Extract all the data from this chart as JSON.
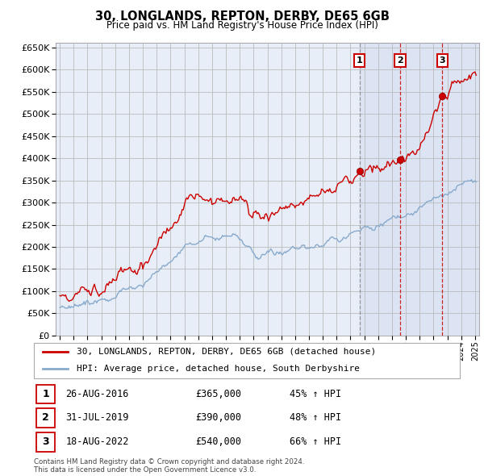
{
  "title": "30, LONGLANDS, REPTON, DERBY, DE65 6GB",
  "subtitle": "Price paid vs. HM Land Registry's House Price Index (HPI)",
  "red_label": "30, LONGLANDS, REPTON, DERBY, DE65 6GB (detached house)",
  "blue_label": "HPI: Average price, detached house, South Derbyshire",
  "footer1": "Contains HM Land Registry data © Crown copyright and database right 2024.",
  "footer2": "This data is licensed under the Open Government Licence v3.0.",
  "ylim": [
    0,
    660000
  ],
  "yticks": [
    0,
    50000,
    100000,
    150000,
    200000,
    250000,
    300000,
    350000,
    400000,
    450000,
    500000,
    550000,
    600000,
    650000
  ],
  "sale_events": [
    {
      "num": 1,
      "date": "26-AUG-2016",
      "price": "£365,000",
      "hpi": "45% ↑ HPI",
      "x_year": 2016.65,
      "line_color": "#888888"
    },
    {
      "num": 2,
      "date": "31-JUL-2019",
      "price": "£390,000",
      "hpi": "48% ↑ HPI",
      "x_year": 2019.58,
      "line_color": "#cc0000"
    },
    {
      "num": 3,
      "date": "18-AUG-2022",
      "price": "£540,000",
      "hpi": "66% ↑ HPI",
      "x_year": 2022.63,
      "line_color": "#cc0000"
    }
  ],
  "xmin": 1994.7,
  "xmax": 2025.3,
  "background_color": "#e8eef8",
  "grid_color": "#bbbbbb",
  "red_color": "#cc0000",
  "blue_color": "#88aacc"
}
